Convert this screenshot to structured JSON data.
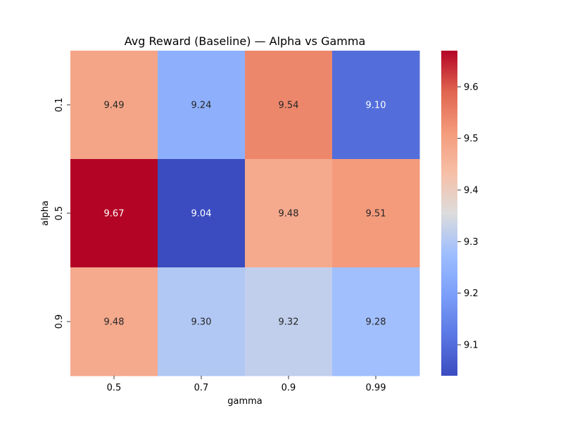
{
  "chart_data": {
    "type": "heatmap",
    "title": "Avg Reward (Baseline) — Alpha vs Gamma",
    "xlabel": "gamma",
    "ylabel": "alpha",
    "x_categories": [
      "0.5",
      "0.7",
      "0.9",
      "0.99"
    ],
    "y_categories": [
      "0.1",
      "0.5",
      "0.9"
    ],
    "values": [
      [
        9.49,
        9.24,
        9.54,
        9.1
      ],
      [
        9.67,
        9.04,
        9.48,
        9.51
      ],
      [
        9.48,
        9.3,
        9.32,
        9.28
      ]
    ],
    "value_format": "2 decimals",
    "colormap": "coolwarm",
    "color_range": [
      9.04,
      9.67
    ],
    "colorbar": {
      "ticks": [
        9.1,
        9.2,
        9.3,
        9.4,
        9.5,
        9.6
      ],
      "tick_labels": [
        "9.1",
        "9.2",
        "9.3",
        "9.4",
        "9.5",
        "9.6"
      ],
      "placement": "right"
    }
  }
}
